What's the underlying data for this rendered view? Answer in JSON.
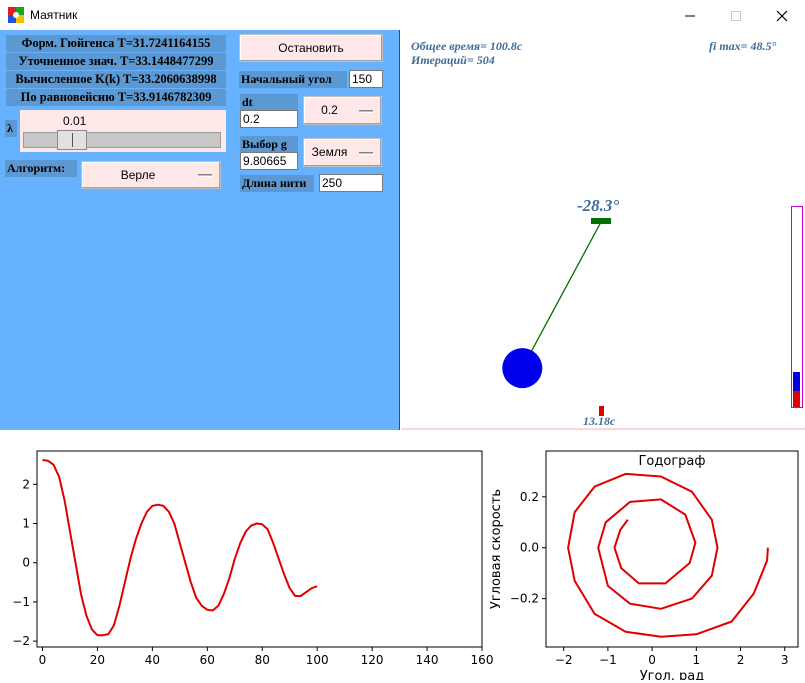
{
  "window": {
    "title": "Маятник"
  },
  "info": {
    "huygens": "Форм. Гюйгенса T=31.7241164155",
    "refined": "Уточненное знач. T=33.1448477299",
    "computed_k": "Вычисленное K(k) T=33.2060638998",
    "equilibrium": "По  равновейсию  T=33.9146782309"
  },
  "controls": {
    "lambda_label": "λ",
    "slider_value": "0.01",
    "slider_fraction": 0.2,
    "algorithm_label": "Алгоритм:",
    "algorithm_value": "Верле",
    "stop_button": "Остановить",
    "start_angle_label": "Начальный угол",
    "start_angle_value": "150",
    "dt_label": "dt",
    "dt_value": "0.2",
    "dt_select": "0.2",
    "g_label": "Выбор g",
    "g_value": "9.80665",
    "g_select": "Земля",
    "length_label": "Длина нити",
    "length_value": "250"
  },
  "simulation": {
    "total_time": "Общее время= 100.8с",
    "iterations": "Итераций= 504",
    "fi_max": "fi max= 48.5°",
    "angle": "-28.3°",
    "angle_value": -28.3,
    "bottom_value": "13.18с",
    "bob_color": "#0000ee",
    "string_color": "#007000",
    "pivot_color": "#007000"
  },
  "chart_data": [
    {
      "type": "line",
      "series": [
        {
          "color": "#e00000",
          "x": [
            0,
            2,
            4,
            6,
            8,
            10,
            12,
            14,
            16,
            18,
            20,
            22,
            24,
            26,
            28,
            30,
            32,
            34,
            36,
            38,
            40,
            42,
            44,
            46,
            48,
            50,
            52,
            54,
            56,
            58,
            60,
            62,
            64,
            66,
            68,
            70,
            72,
            74,
            76,
            78,
            80,
            82,
            84,
            86,
            88,
            90,
            92,
            94,
            96,
            98,
            100
          ],
          "y": [
            2.62,
            2.6,
            2.5,
            2.2,
            1.6,
            0.8,
            0.0,
            -0.8,
            -1.35,
            -1.7,
            -1.85,
            -1.85,
            -1.82,
            -1.6,
            -1.1,
            -0.5,
            0.1,
            0.6,
            1.0,
            1.3,
            1.45,
            1.48,
            1.45,
            1.3,
            1.0,
            0.5,
            0.0,
            -0.5,
            -0.9,
            -1.1,
            -1.2,
            -1.22,
            -1.1,
            -0.8,
            -0.4,
            0.1,
            0.5,
            0.8,
            0.95,
            1.0,
            0.98,
            0.85,
            0.5,
            0.1,
            -0.3,
            -0.65,
            -0.85,
            -0.85,
            -0.75,
            -0.65,
            -0.6
          ]
        }
      ],
      "xlim": [
        -2,
        160
      ],
      "ylim": [
        -2.15,
        2.85
      ],
      "xticks": [
        "0",
        "20",
        "40",
        "60",
        "80",
        "100",
        "120",
        "140",
        "160"
      ],
      "yticks": [
        "−2",
        "−1",
        "0",
        "1",
        "2"
      ]
    },
    {
      "type": "line",
      "title": "Годограф",
      "xlabel": "Угол, рад",
      "ylabel": "Угловая скорость",
      "xlim": [
        -2.4,
        3.3
      ],
      "ylim": [
        -0.39,
        0.38
      ],
      "xticks": [
        "−2",
        "−1",
        "0",
        "1",
        "2",
        "3"
      ],
      "yticks": [
        "−0.2",
        "0.0",
        "0.2"
      ],
      "series": [
        {
          "color": "#e00000",
          "x": [
            2.62,
            2.6,
            2.3,
            1.8,
            1.0,
            0.2,
            -0.6,
            -1.3,
            -1.75,
            -1.9,
            -1.75,
            -1.3,
            -0.6,
            0.2,
            0.9,
            1.35,
            1.48,
            1.35,
            0.9,
            0.2,
            -0.5,
            -1.0,
            -1.22,
            -1.05,
            -0.5,
            0.2,
            0.75,
            0.98,
            0.85,
            0.3,
            -0.3,
            -0.7,
            -0.85,
            -0.72,
            -0.55
          ],
          "y": [
            0.0,
            -0.05,
            -0.18,
            -0.29,
            -0.34,
            -0.35,
            -0.33,
            -0.26,
            -0.13,
            0.0,
            0.14,
            0.24,
            0.29,
            0.28,
            0.22,
            0.11,
            0.0,
            -0.11,
            -0.2,
            -0.24,
            -0.22,
            -0.15,
            0.0,
            0.1,
            0.18,
            0.19,
            0.13,
            0.02,
            -0.06,
            -0.14,
            -0.14,
            -0.08,
            0.0,
            0.07,
            0.11
          ]
        }
      ]
    }
  ]
}
